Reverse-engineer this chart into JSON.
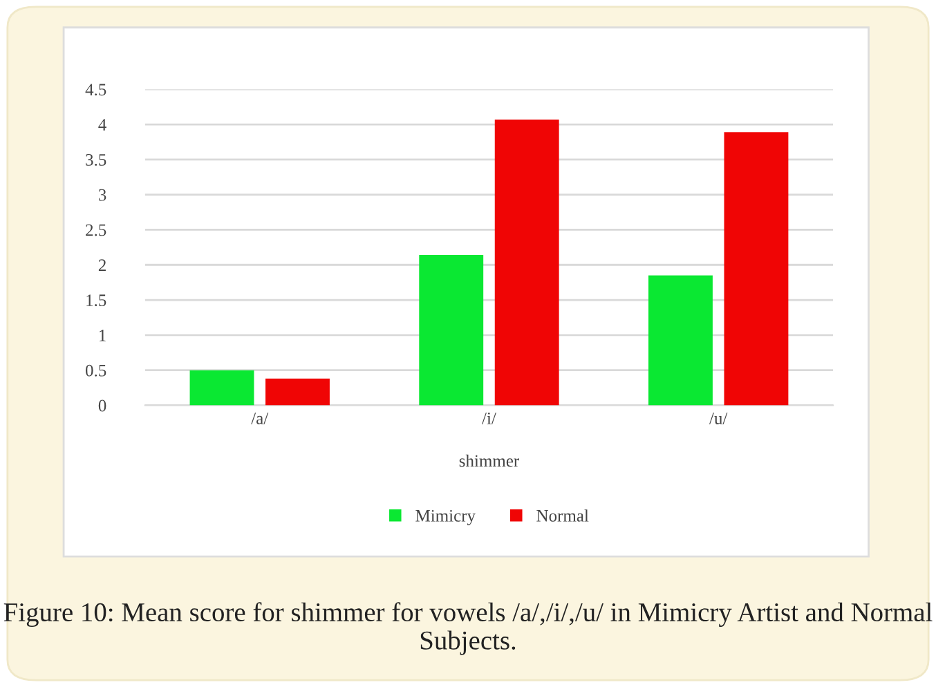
{
  "chart_data": {
    "type": "bar",
    "categories": [
      "/a/",
      "/i/",
      "/u/"
    ],
    "series": [
      {
        "name": "Mimicry",
        "color": "#0ae832",
        "values": [
          0.5,
          2.14,
          1.85
        ]
      },
      {
        "name": "Normal",
        "color": "#f00505",
        "values": [
          0.38,
          4.07,
          3.89
        ]
      }
    ],
    "xlabel": "shimmer",
    "ylim": [
      0,
      4.5
    ],
    "yticks": [
      0,
      0.5,
      1,
      1.5,
      2,
      2.5,
      3,
      3.5,
      4,
      4.5
    ],
    "grid": "y",
    "legend": "bottom",
    "annotations": [
      "Figure 10: Mean score for shimmer for vowels /a/,/i/,/u/ in Mimicry Artist and Normal Subjects."
    ]
  }
}
